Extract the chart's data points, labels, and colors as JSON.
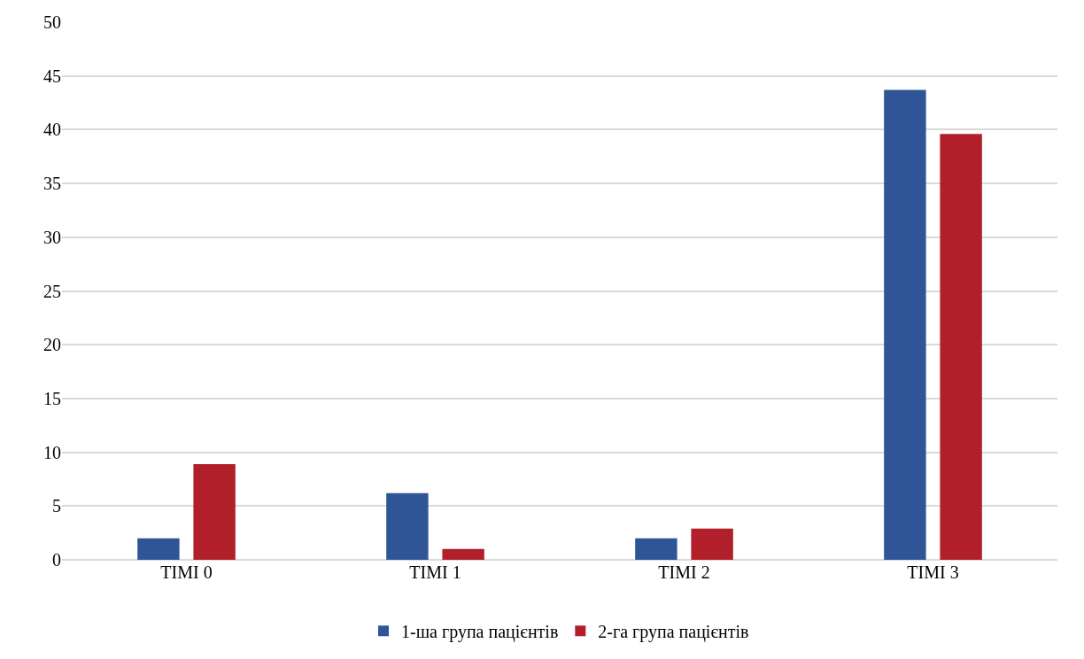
{
  "chart_data": {
    "type": "bar",
    "categories": [
      "TIMI 0",
      "TIMI 1",
      "TIMI 2",
      "TIMI 3"
    ],
    "series": [
      {
        "name": "1-ша група пацієнтів",
        "color": "#2f5597",
        "values": [
          2.0,
          6.2,
          2.0,
          43.7
        ]
      },
      {
        "name": "2-га група пацієнтів",
        "color": "#b11f2b",
        "values": [
          8.9,
          1.0,
          2.9,
          39.6
        ]
      }
    ],
    "ylim": [
      0,
      50
    ],
    "yticks": [
      0,
      5,
      10,
      15,
      20,
      25,
      30,
      35,
      40,
      45,
      50
    ],
    "grid": "y",
    "legend": "bottom"
  }
}
